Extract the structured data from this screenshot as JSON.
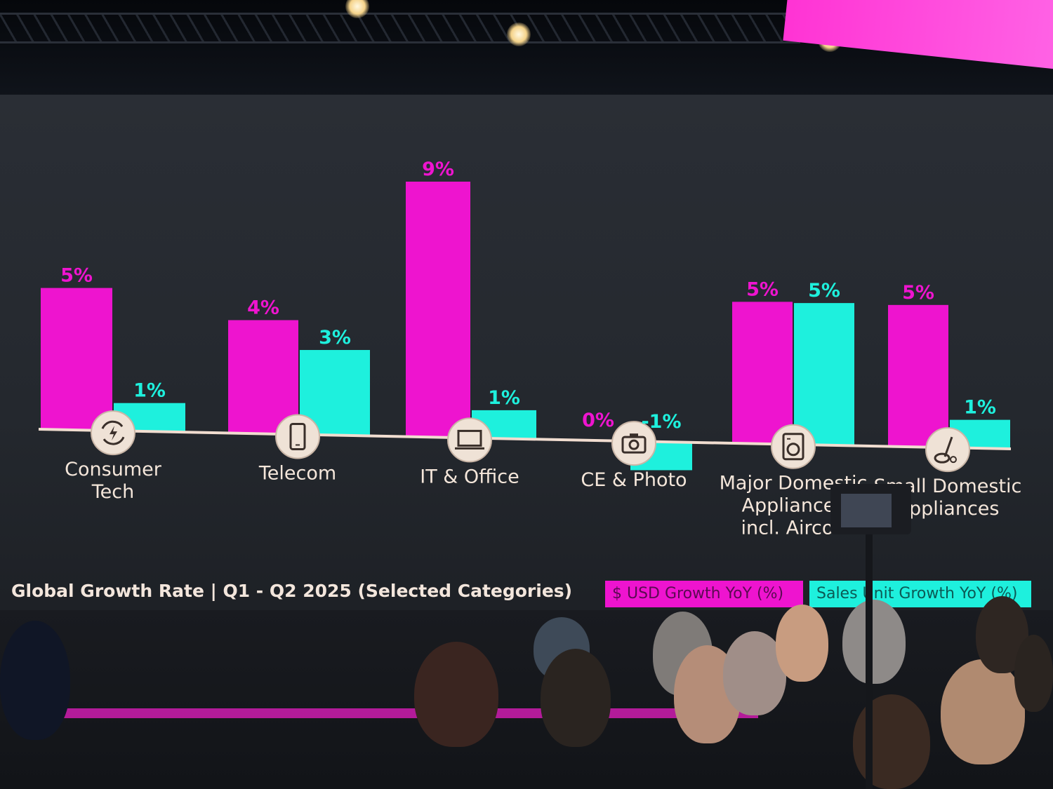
{
  "colors": {
    "usd": "#ee14cf",
    "units": "#1ef0dd",
    "baseline": "#f1ddd0",
    "icon_circle": "#efe2d6",
    "icon_stroke": "#3a2f2a"
  },
  "chart_data": {
    "type": "bar",
    "title": "Global Growth Rate | Q1 - Q2 2025 (Selected Categories)",
    "categories": [
      "Consumer Tech",
      "Telecom",
      "IT & Office",
      "CE & Photo",
      "Major Domestic Appliances incl. Aircon",
      "Small Domestic Appliances"
    ],
    "category_lines": [
      [
        "Consumer",
        "Tech"
      ],
      [
        "Telecom"
      ],
      [
        "IT & Office"
      ],
      [
        "CE & Photo"
      ],
      [
        "Major Domestic",
        "Appliances",
        "incl. Aircon"
      ],
      [
        "Small Domestic",
        "Appliances"
      ]
    ],
    "category_icons": [
      "refresh-bolt-icon",
      "smartphone-icon",
      "laptop-icon",
      "camera-icon",
      "washing-machine-icon",
      "vacuum-icon"
    ],
    "series": [
      {
        "name": "$ USD Growth YoY (%)",
        "values": [
          5,
          4,
          9,
          0,
          5,
          5
        ],
        "labels": [
          "5%",
          "4%",
          "9%",
          "0%",
          "5%",
          "5%"
        ]
      },
      {
        "name": "Sales Unit Growth YoY (%)",
        "values": [
          1,
          3,
          1,
          -1,
          5,
          1
        ],
        "labels": [
          "1%",
          "3%",
          "1%",
          "-1%",
          "5%",
          "1%"
        ]
      }
    ],
    "ylim": [
      -1,
      9
    ],
    "grid": false,
    "legend": "bottom-right"
  }
}
